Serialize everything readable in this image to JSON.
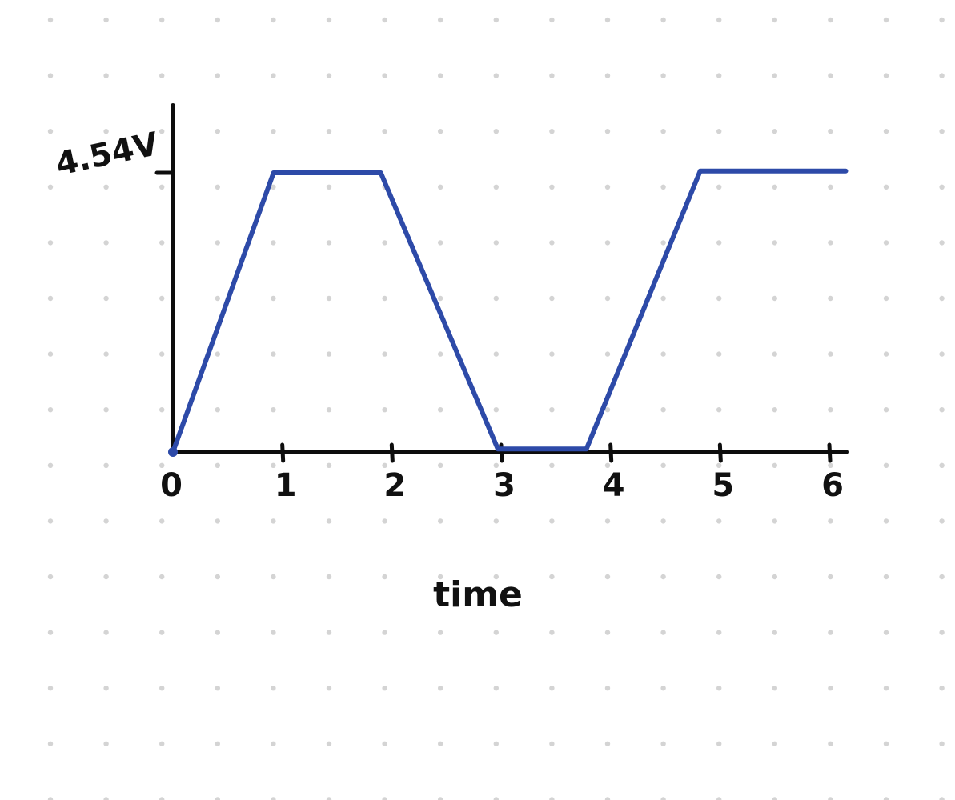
{
  "background": {
    "style": "dot-grid",
    "dot_color": "#d4d4d4",
    "paper_color": "#ffffff"
  },
  "colors": {
    "axis": "#0d0d0d",
    "series": "#2d4aa8",
    "text": "#111111"
  },
  "chart_data": {
    "type": "line",
    "xlabel": "time",
    "ylabel": "",
    "x_tick_labels": [
      "0",
      "1",
      "2",
      "3",
      "4",
      "5",
      "6"
    ],
    "x_ticks": [
      0,
      1,
      2,
      3,
      4,
      5,
      6
    ],
    "y_tick_labels": [
      "4.54V"
    ],
    "y_ticks": [
      4.54
    ],
    "xlim": [
      0,
      6
    ],
    "ylim": [
      0,
      4.54
    ],
    "grid": false,
    "series": [
      {
        "x": [
          0,
          0.92,
          1.9,
          2.97,
          3.78,
          4.82,
          6.15
        ],
        "y": [
          0,
          4.54,
          4.54,
          0.05,
          0.05,
          4.57,
          4.57
        ]
      }
    ]
  }
}
